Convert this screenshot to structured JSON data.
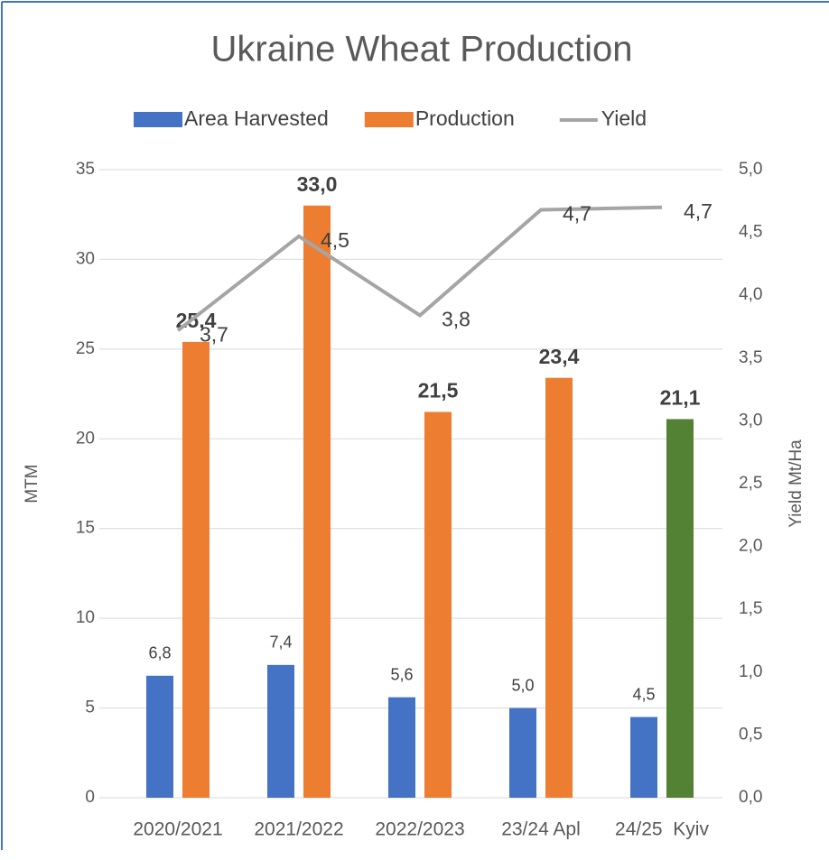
{
  "chart_data": {
    "type": "bar_line",
    "title": "Ukraine Wheat Production",
    "categories": [
      "2020/2021",
      "2021/2022",
      "2022/2023",
      "23/24 Apl",
      "24/25  Kyiv"
    ],
    "ylabel": "MTM",
    "y2label": "Yield Mt/Ha",
    "ylim": [
      0,
      35
    ],
    "yticks": [
      0,
      5,
      10,
      15,
      20,
      25,
      30,
      35
    ],
    "y2lim": [
      0,
      5
    ],
    "y2ticks": [
      {
        "value": 0,
        "label": "0,0"
      },
      {
        "value": 0.5,
        "label": "0,5"
      },
      {
        "value": 1,
        "label": "1,0"
      },
      {
        "value": 1.5,
        "label": "1,5"
      },
      {
        "value": 2,
        "label": "2,0"
      },
      {
        "value": 2.5,
        "label": "2,5"
      },
      {
        "value": 3,
        "label": "3,0"
      },
      {
        "value": 3.5,
        "label": "3,5"
      },
      {
        "value": 4,
        "label": "4,0"
      },
      {
        "value": 4.5,
        "label": "4,5"
      },
      {
        "value": 5,
        "label": "5,0"
      }
    ],
    "grid": true,
    "legend": "top",
    "series": [
      {
        "name": "Area Harvested",
        "type": "bar",
        "color": "#4472c4",
        "values": [
          6.8,
          7.4,
          5.6,
          5.0,
          4.5
        ],
        "value_labels": [
          "6,8",
          "7,4",
          "5,6",
          "5,0",
          "4,5"
        ]
      },
      {
        "name": "Production",
        "type": "bar",
        "color": "#ed7d31",
        "point_colors": [
          "#ed7d31",
          "#ed7d31",
          "#ed7d31",
          "#ed7d31",
          "#548235"
        ],
        "values": [
          25.4,
          33.0,
          21.5,
          23.4,
          21.1
        ],
        "value_labels": [
          "25,4",
          "33,0",
          "21,5",
          "23,4",
          "21,1"
        ]
      },
      {
        "name": "Yield",
        "type": "line",
        "axis": "y2",
        "color": "#a5a5a5",
        "values": [
          3.72,
          4.47,
          3.84,
          4.68,
          4.7
        ],
        "value_labels": [
          "3,7",
          "4,5",
          "3,8",
          "4,7",
          "4,7"
        ]
      }
    ]
  }
}
